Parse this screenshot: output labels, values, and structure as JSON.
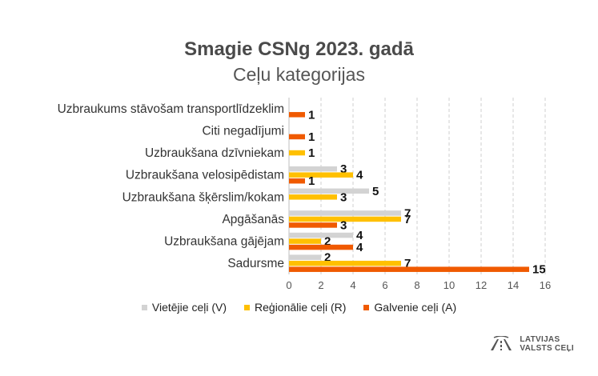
{
  "chart_data": {
    "type": "bar",
    "orientation": "horizontal",
    "title": "Smagie CSNg 2023. gadā",
    "subtitle": "Ceļu kategorijas",
    "categories": [
      "Uzbraukums stāvošam transportlīdzeklim",
      "Citi negadījumi",
      "Uzbraukšana dzīvniekam",
      "Uzbraukšana velosipēdistam",
      "Uzbraukšana šķērslim/kokam",
      "Apgāšanās",
      "Uzbraukšana gājējam",
      "Sadursme"
    ],
    "series": [
      {
        "name": "Vietējie ceļi (V)",
        "color": "#d3d3d3",
        "values": [
          null,
          null,
          null,
          3,
          5,
          7,
          4,
          2
        ]
      },
      {
        "name": "Reģionālie ceļi (R)",
        "color": "#ffc000",
        "values": [
          null,
          null,
          1,
          4,
          3,
          7,
          2,
          7
        ]
      },
      {
        "name": "Galvenie ceļi (A)",
        "color": "#f05a00",
        "values": [
          1,
          1,
          null,
          1,
          null,
          3,
          4,
          15
        ]
      }
    ],
    "xlim": [
      0,
      16
    ],
    "xticks": [
      "0",
      "2",
      "4",
      "6",
      "8",
      "10",
      "12",
      "14",
      "16"
    ],
    "grid": true,
    "legend_position": "bottom"
  },
  "logo": {
    "line1": "LATVIJAS",
    "line2": "VALSTS CEĻI"
  }
}
